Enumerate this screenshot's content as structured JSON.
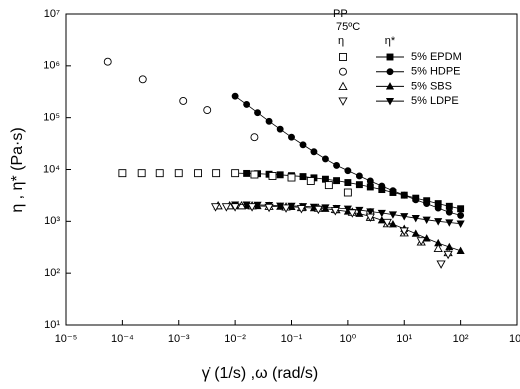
{
  "chart_data": {
    "type": "scatter",
    "log_x": true,
    "log_y": true,
    "color": "#000000",
    "xlabel": "γ̇  (1/s) ,ω (rad/s)",
    "ylabel": "η , η* (Pa·s)",
    "legend_title": [
      "PP",
      "75ºC"
    ],
    "legend_headers": [
      "η",
      "η*"
    ],
    "xlim": [
      1e-05,
      1000
    ],
    "ylim": [
      10,
      10000000
    ],
    "xticks": [
      {
        "value": 1e-05,
        "label": "10⁻⁵"
      },
      {
        "value": 0.0001,
        "label": "10⁻⁴"
      },
      {
        "value": 0.001,
        "label": "10⁻³"
      },
      {
        "value": 0.01,
        "label": "10⁻²"
      },
      {
        "value": 0.1,
        "label": "10⁻¹"
      },
      {
        "value": 1,
        "label": "10⁰"
      },
      {
        "value": 10,
        "label": "10¹"
      },
      {
        "value": 100,
        "label": "10²"
      },
      {
        "value": 1000,
        "label": "10³"
      }
    ],
    "yticks": [
      {
        "value": 10,
        "label": "10¹"
      },
      {
        "value": 100,
        "label": "10²"
      },
      {
        "value": 1000,
        "label": "10³"
      },
      {
        "value": 10000,
        "label": "10⁴"
      },
      {
        "value": 100000,
        "label": "10⁵"
      },
      {
        "value": 1000000,
        "label": "10⁶"
      },
      {
        "value": 10000000,
        "label": "10⁷"
      }
    ],
    "series": [
      {
        "name": "5% EPDM",
        "marker": "square",
        "steady": {
          "x": [
            0.0001,
            0.00022,
            0.00046,
            0.001,
            0.0022,
            0.0046,
            0.01,
            0.022,
            0.046,
            0.1,
            0.22,
            0.46,
            1
          ],
          "values": [
            8500,
            8500,
            8500,
            8500,
            8500,
            8500,
            8500,
            8000,
            7500,
            7000,
            6000,
            5000,
            3600
          ]
        },
        "dynamic": {
          "x": [
            0.01,
            0.016,
            0.025,
            0.04,
            0.063,
            0.1,
            0.16,
            0.25,
            0.4,
            0.63,
            1,
            1.6,
            2.5,
            4,
            6.3,
            10,
            16,
            25,
            40,
            63,
            100
          ],
          "values": [
            8500,
            8400,
            8300,
            8100,
            7900,
            7600,
            7300,
            6900,
            6500,
            6100,
            5600,
            5100,
            4600,
            4100,
            3600,
            3200,
            2800,
            2500,
            2200,
            1950,
            1750
          ]
        }
      },
      {
        "name": "5% HDPE",
        "marker": "circle",
        "steady": {
          "x": [
            5.5e-05,
            0.00023,
            0.0012,
            0.0032,
            0.022,
            2.5
          ],
          "values": [
            1200000,
            550000,
            210000,
            140000,
            42000,
            1500
          ]
        },
        "dynamic": {
          "x": [
            0.01,
            0.016,
            0.025,
            0.04,
            0.063,
            0.1,
            0.16,
            0.25,
            0.4,
            0.63,
            1,
            1.6,
            2.5,
            4,
            6.3,
            10,
            16,
            25,
            40,
            63,
            100
          ],
          "values": [
            260000,
            180000,
            125000,
            85000,
            60000,
            42000,
            30000,
            22000,
            16000,
            12000,
            9500,
            7500,
            6000,
            4800,
            3900,
            3200,
            2600,
            2200,
            1800,
            1500,
            1300
          ]
        }
      },
      {
        "name": "5% SBS",
        "marker": "triangle-up",
        "steady": {
          "x": [
            0.005,
            0.008,
            0.013,
            0.02,
            0.04,
            0.08,
            0.15,
            0.3,
            0.6,
            1.2,
            2.5,
            5,
            10,
            20,
            40,
            60
          ],
          "values": [
            2000,
            2000,
            2000,
            2000,
            1950,
            1900,
            1850,
            1800,
            1700,
            1500,
            1200,
            900,
            600,
            400,
            300,
            250
          ]
        },
        "dynamic": {
          "x": [
            0.01,
            0.016,
            0.025,
            0.04,
            0.063,
            0.1,
            0.16,
            0.25,
            0.4,
            0.63,
            1,
            1.6,
            2.5,
            4,
            6.3,
            10,
            16,
            25,
            40,
            63,
            100
          ],
          "values": [
            2000,
            2000,
            1980,
            1950,
            1920,
            1900,
            1850,
            1800,
            1750,
            1650,
            1550,
            1400,
            1250,
            1050,
            880,
            720,
            580,
            470,
            380,
            320,
            270
          ]
        }
      },
      {
        "name": "5% LDPE",
        "marker": "triangle-down",
        "steady": {
          "x": [
            0.0045,
            0.007,
            0.01,
            0.02,
            0.04,
            0.08,
            0.15,
            0.3,
            0.6,
            1.2,
            2.5,
            5,
            10,
            20,
            45,
            60
          ],
          "values": [
            1900,
            1900,
            1900,
            1900,
            1850,
            1800,
            1750,
            1700,
            1600,
            1450,
            1200,
            950,
            650,
            420,
            150,
            230
          ]
        },
        "dynamic": {
          "x": [
            0.01,
            0.016,
            0.025,
            0.04,
            0.063,
            0.1,
            0.16,
            0.25,
            0.4,
            0.63,
            1,
            1.6,
            2.5,
            4,
            6.3,
            10,
            16,
            25,
            40,
            63,
            100
          ],
          "values": [
            2100,
            2100,
            2080,
            2050,
            2000,
            1980,
            1950,
            1900,
            1850,
            1800,
            1750,
            1650,
            1550,
            1450,
            1350,
            1250,
            1150,
            1070,
            1000,
            950,
            900
          ]
        }
      }
    ]
  }
}
